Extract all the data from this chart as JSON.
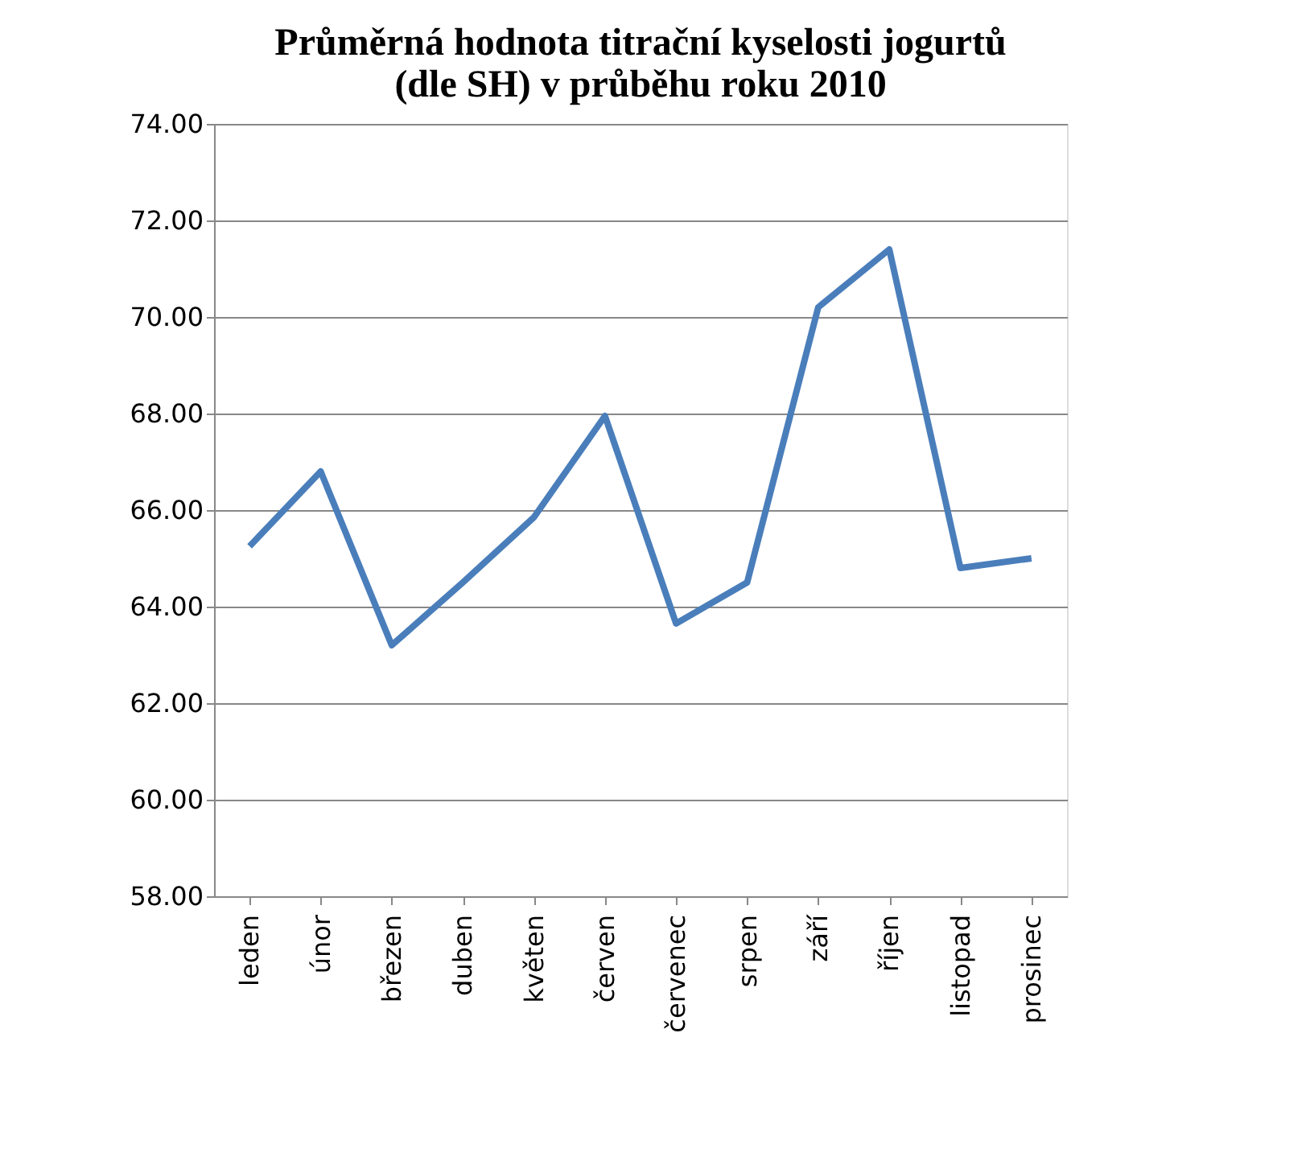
{
  "chart_data": {
    "type": "line",
    "title": [
      "Průměrná hodnota titrační kyselosti jogurtů",
      "(dle SH) v průběhu roku 2010"
    ],
    "categories": [
      "leden",
      "únor",
      "březen",
      "duben",
      "květen",
      "červen",
      "červenec",
      "srpen",
      "září",
      "říjen",
      "listopad",
      "prosinec"
    ],
    "series": [
      {
        "color": "#4a7ebb",
        "values": [
          65.25,
          66.8,
          63.2,
          64.5,
          65.85,
          67.95,
          63.65,
          64.5,
          70.2,
          71.4,
          64.8,
          65.0
        ]
      }
    ],
    "ylim": [
      58,
      74
    ],
    "yticks": [
      {
        "value": 58,
        "label": "58.00"
      },
      {
        "value": 60,
        "label": "60.00"
      },
      {
        "value": 62,
        "label": "62.00"
      },
      {
        "value": 64,
        "label": "64.00"
      },
      {
        "value": 66,
        "label": "66.00"
      },
      {
        "value": 68,
        "label": "68.00"
      },
      {
        "value": 70,
        "label": "70.00"
      },
      {
        "value": 72,
        "label": "72.00"
      },
      {
        "value": 74,
        "label": "74.00"
      }
    ],
    "grid": "y",
    "marker": "none",
    "line_style": "solid"
  }
}
